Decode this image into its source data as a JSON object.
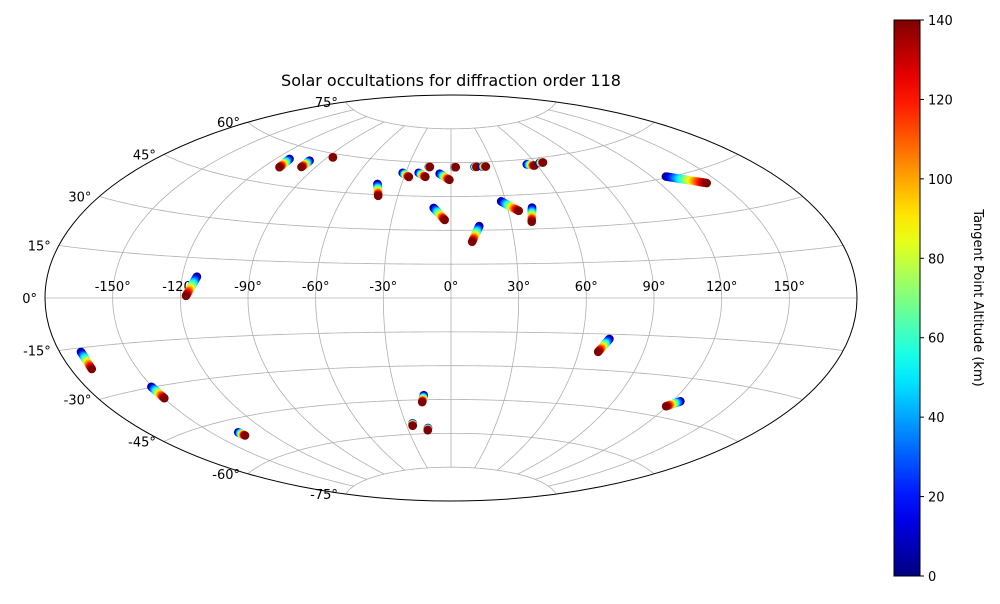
{
  "chart_data": {
    "type": "scatter",
    "projection": "aitoff",
    "title": "Solar occultations for diffraction order 118",
    "grid": true,
    "lon_tick_labels": [
      "-150°",
      "-120°",
      "-90°",
      "-60°",
      "-30°",
      "0°",
      "30°",
      "60°",
      "90°",
      "120°",
      "150°"
    ],
    "lon_ticks": [
      -150,
      -120,
      -90,
      -60,
      -30,
      0,
      30,
      60,
      90,
      120,
      150
    ],
    "lat_tick_labels": [
      "-75°",
      "-60°",
      "-45°",
      "-30°",
      "-15°",
      "0°",
      "15°",
      "30°",
      "45°",
      "60°",
      "75°"
    ],
    "lat_ticks": [
      -75,
      -60,
      -45,
      -30,
      -15,
      0,
      15,
      30,
      45,
      60,
      75
    ],
    "colorbar": {
      "label": "Tangent Point Altitude (km)",
      "colormap": "jet",
      "range": [
        0,
        140
      ],
      "tick_values": [
        0,
        20,
        40,
        60,
        80,
        100,
        120,
        140
      ],
      "tick_labels": [
        "0",
        "20",
        "40",
        "60",
        "80",
        "100",
        "120",
        "140"
      ]
    },
    "tracks": [
      {
        "lon_start": -170.5,
        "lat_start": -16.2,
        "lon_end": -170.6,
        "lat_end": -21.5
      },
      {
        "lon_start": -150.4,
        "lat_start": -29.8,
        "lon_end": -149.8,
        "lat_end": -34.0
      },
      {
        "lon_start": -136.1,
        "lat_start": -49.5,
        "lon_end": -135.3,
        "lat_end": -51.0
      },
      {
        "lon_start": -113.5,
        "lat_start": 8.0,
        "lon_end": -117.5,
        "lat_end": 0.8
      },
      {
        "lon_start": -112.0,
        "lat_start": 55.0,
        "lon_end": -111.0,
        "lat_end": 51.5
      },
      {
        "lon_start": -98.5,
        "lat_start": 55.8,
        "lon_end": -98.5,
        "lat_end": 53.0
      },
      {
        "lon_start": -86.5,
        "lat_start": 58.5,
        "lon_end": -86.5,
        "lat_end": 58.5
      },
      {
        "lon_start": -44.5,
        "lat_start": 49.6,
        "lon_end": -41.0,
        "lat_end": 44.5
      },
      {
        "lon_start": -32.0,
        "lat_start": 55.0,
        "lon_end": -27.0,
        "lat_end": 53.3
      },
      {
        "lon_start": -21.5,
        "lat_start": 55.3,
        "lon_end": -16.5,
        "lat_end": 53.6
      },
      {
        "lon_start": -15.5,
        "lat_start": 58.0,
        "lon_end": -14.8,
        "lat_end": 58.0
      },
      {
        "lon_start": -7.5,
        "lat_start": 55.1,
        "lon_end": -1.0,
        "lat_end": 52.4
      },
      {
        "lon_start": 2.5,
        "lat_start": 58.0,
        "lon_end": 3.3,
        "lat_end": 58.0
      },
      {
        "lon_start": -9.2,
        "lat_start": 39.9,
        "lon_end": -3.2,
        "lat_end": 34.6
      },
      {
        "lon_start": 14.0,
        "lat_start": 31.8,
        "lon_end": 10.0,
        "lat_end": 24.9
      },
      {
        "lon_start": 16.5,
        "lat_start": 58.0,
        "lon_end": 18.0,
        "lat_end": 58.0
      },
      {
        "lon_start": 22.0,
        "lat_start": 58.0,
        "lon_end": 24.5,
        "lat_end": 58.0
      },
      {
        "lon_start": 27.5,
        "lat_start": 42.5,
        "lon_end": 35.5,
        "lat_end": 38.1
      },
      {
        "lon_start": 43.0,
        "lat_start": 39.3,
        "lon_end": 40.5,
        "lat_end": 33.2
      },
      {
        "lon_start": 53.5,
        "lat_start": 57.8,
        "lon_end": 58.0,
        "lat_end": 57.0
      },
      {
        "lon_start": 63.0,
        "lat_start": 57.9,
        "lon_end": 65.5,
        "lat_end": 57.9
      },
      {
        "lon_start": 127.5,
        "lat_start": 45.4,
        "lon_end": 143.5,
        "lat_end": 40.5
      },
      {
        "lon_start": 72.5,
        "lat_start": -17.0,
        "lon_end": 69.0,
        "lat_end": -22.5
      },
      {
        "lon_start": 124.0,
        "lat_start": -38.5,
        "lon_end": 119.5,
        "lat_end": -41.0
      },
      {
        "lon_start": -15.0,
        "lat_start": -43.0,
        "lon_end": -16.5,
        "lat_end": -46.0
      },
      {
        "lon_start": -25.5,
        "lat_start": -55.2,
        "lon_end": -26.0,
        "lat_end": -56.3
      },
      {
        "lon_start": -16.0,
        "lat_start": -57.5,
        "lon_end": -16.5,
        "lat_end": -58.5
      }
    ],
    "altitude_range_per_track": [
      0,
      140
    ]
  }
}
